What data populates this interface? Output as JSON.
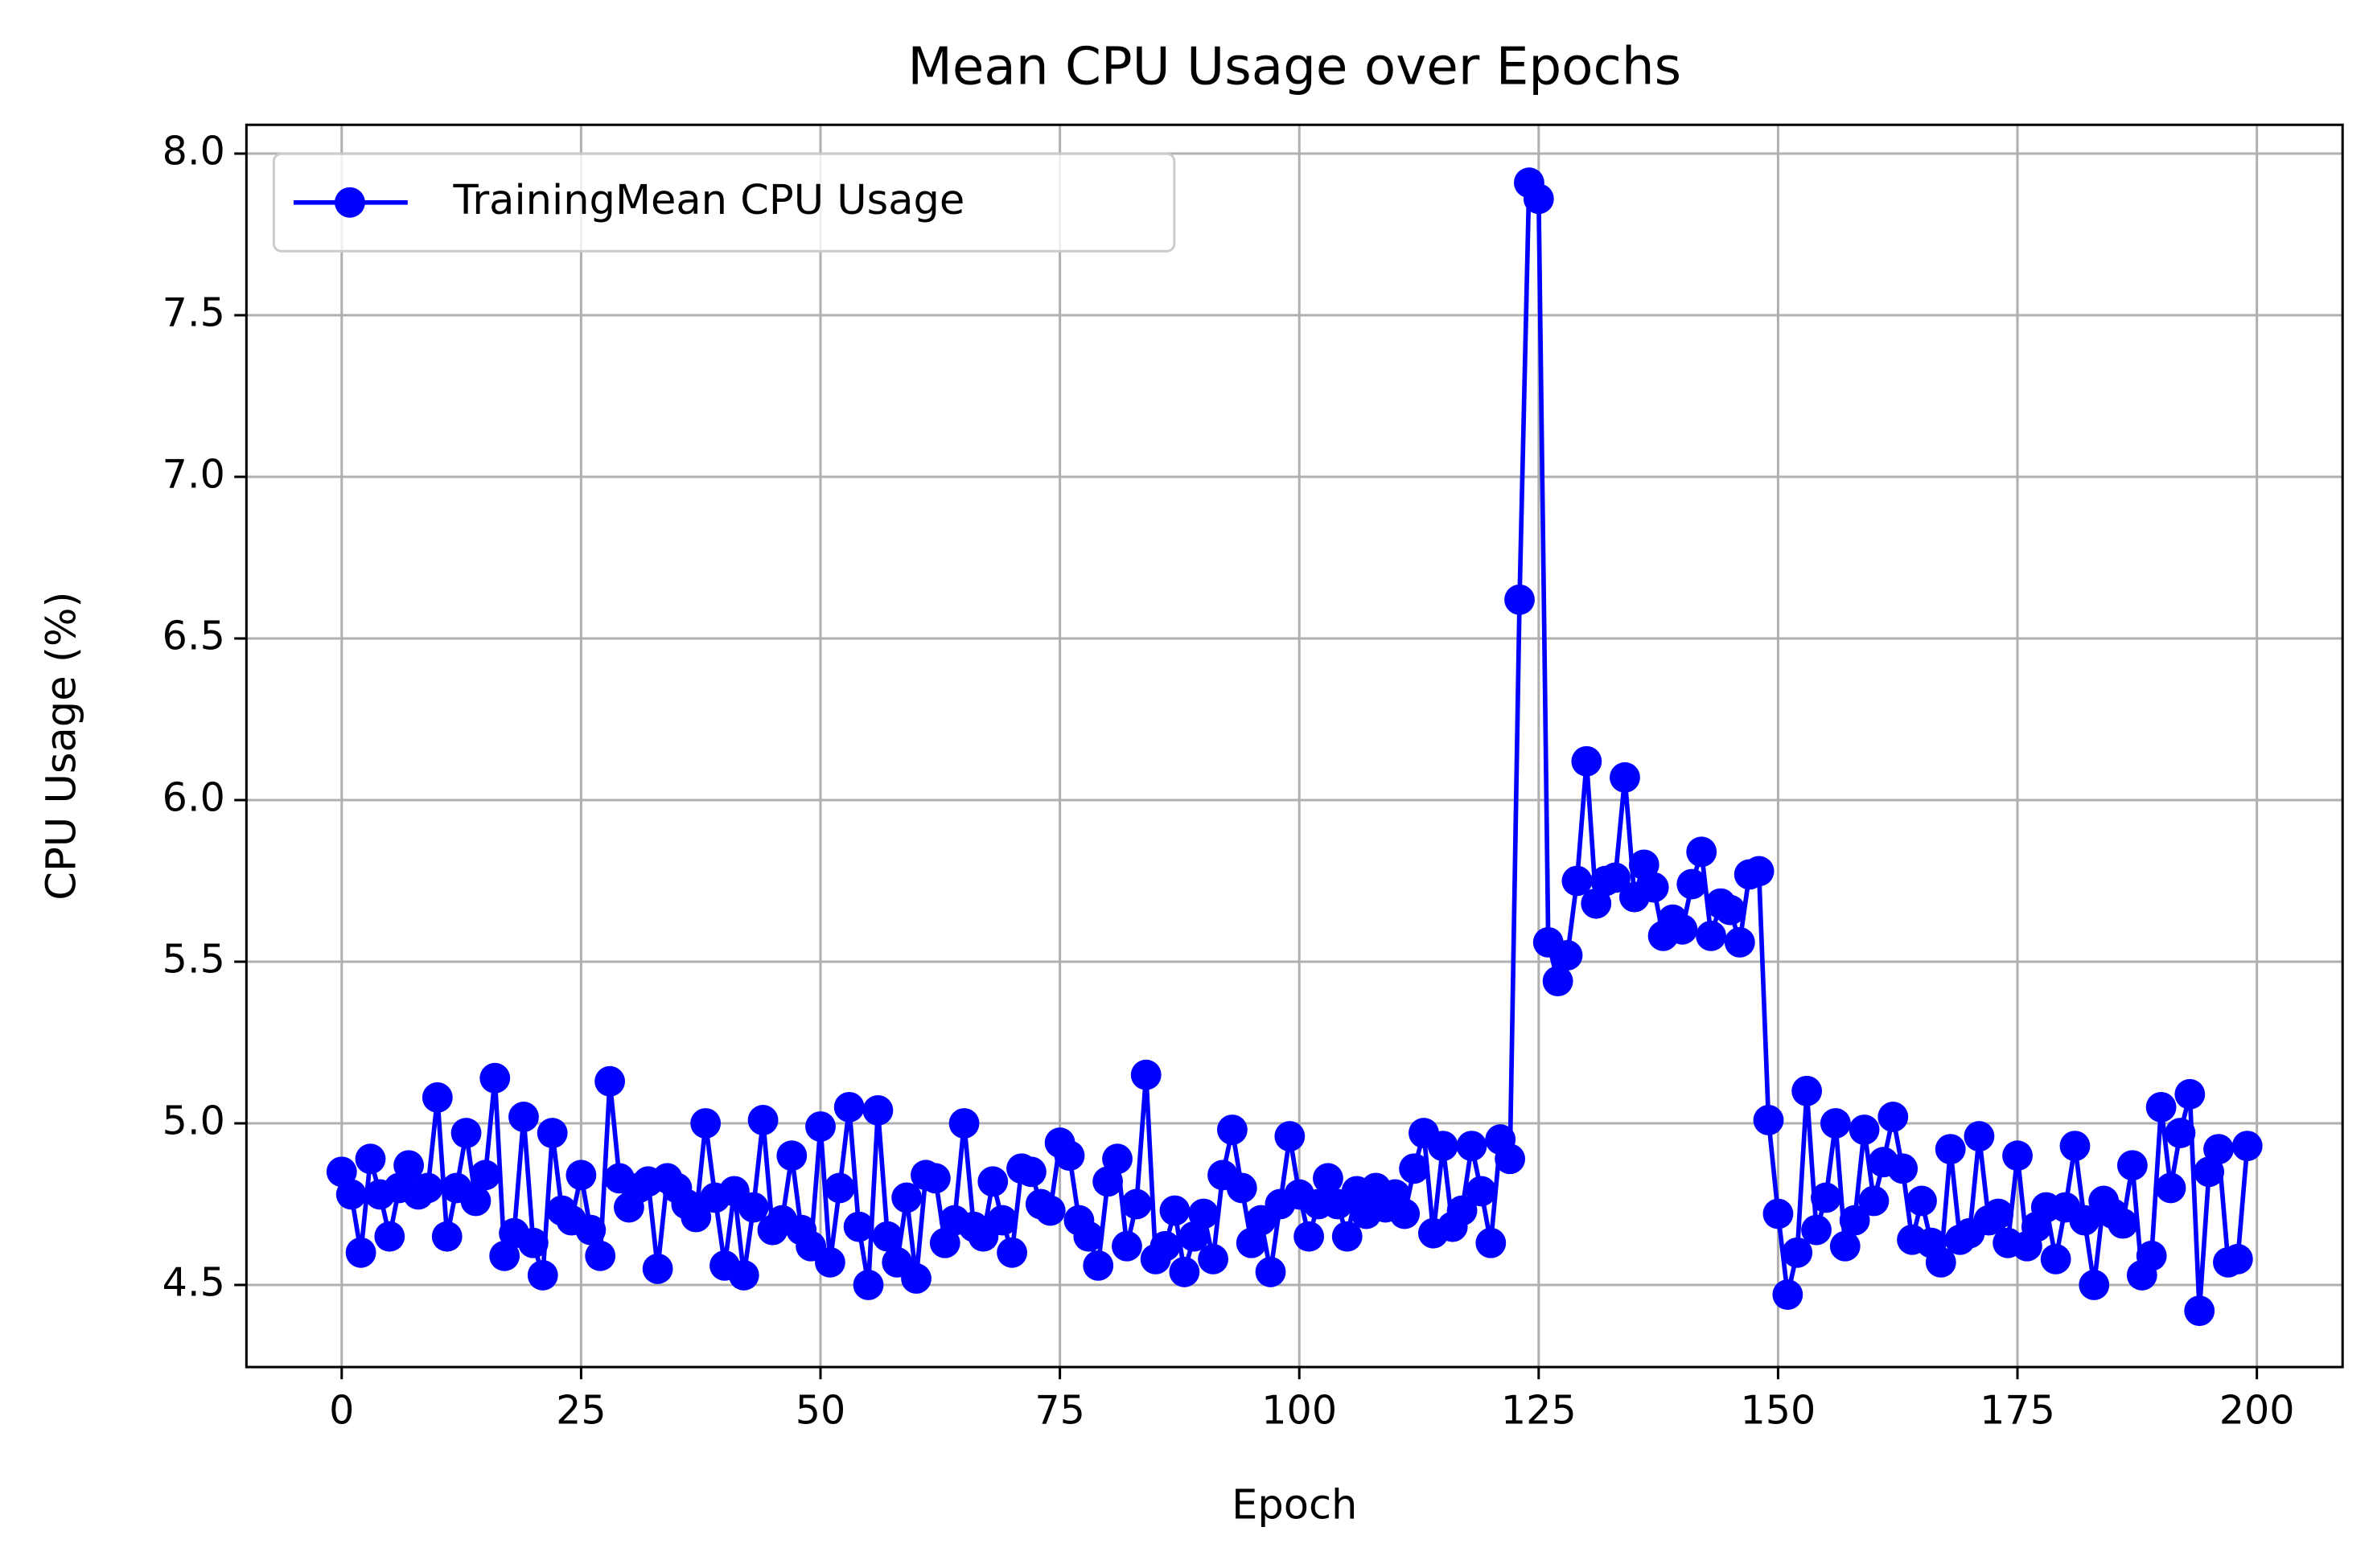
{
  "chart_data": {
    "type": "line",
    "title": "Mean CPU Usage over Epochs",
    "x_label": "Epoch",
    "y_label": "CPU Usage (%)",
    "x": [
      0,
      1,
      2,
      3,
      4,
      5,
      6,
      7,
      8,
      9,
      10,
      11,
      12,
      13,
      14,
      15,
      16,
      17,
      18,
      19,
      20,
      21,
      22,
      23,
      24,
      25,
      26,
      27,
      28,
      29,
      30,
      31,
      32,
      33,
      34,
      35,
      36,
      37,
      38,
      39,
      40,
      41,
      42,
      43,
      44,
      45,
      46,
      47,
      48,
      49,
      50,
      51,
      52,
      53,
      54,
      55,
      56,
      57,
      58,
      59,
      60,
      61,
      62,
      63,
      64,
      65,
      66,
      67,
      68,
      69,
      70,
      71,
      72,
      73,
      74,
      75,
      76,
      77,
      78,
      79,
      80,
      81,
      82,
      83,
      84,
      85,
      86,
      87,
      88,
      89,
      90,
      91,
      92,
      93,
      94,
      95,
      96,
      97,
      98,
      99,
      100,
      101,
      102,
      103,
      104,
      105,
      106,
      107,
      108,
      109,
      110,
      111,
      112,
      113,
      114,
      115,
      116,
      117,
      118,
      119,
      120,
      121,
      122,
      123,
      124,
      125,
      126,
      127,
      128,
      129,
      130,
      131,
      132,
      133,
      134,
      135,
      136,
      137,
      138,
      139,
      140,
      141,
      142,
      143,
      144,
      145,
      146,
      147,
      148,
      149,
      150,
      151,
      152,
      153,
      154,
      155,
      156,
      157,
      158,
      159,
      160,
      161,
      162,
      163,
      164,
      165,
      166,
      167,
      168,
      169,
      170,
      171,
      172,
      173,
      174,
      175,
      176,
      177,
      178,
      179,
      180,
      181,
      182,
      183,
      184,
      185,
      186,
      187,
      188,
      189,
      190,
      191,
      192,
      193,
      194,
      195,
      196,
      197,
      198,
      199
    ],
    "series": [
      {
        "name": "TrainingMean CPU Usage",
        "color": "#0000ff",
        "values": [
          4.85,
          4.78,
          4.6,
          4.89,
          4.78,
          4.65,
          4.8,
          4.87,
          4.78,
          4.8,
          5.08,
          4.65,
          4.8,
          4.97,
          4.76,
          4.84,
          5.14,
          4.59,
          4.66,
          5.02,
          4.63,
          4.53,
          4.97,
          4.73,
          4.7,
          4.84,
          4.67,
          4.59,
          5.13,
          4.83,
          4.74,
          4.8,
          4.82,
          4.55,
          4.83,
          4.8,
          4.75,
          4.71,
          5.0,
          4.77,
          4.56,
          4.79,
          4.53,
          4.74,
          5.01,
          4.67,
          4.7,
          4.9,
          4.67,
          4.62,
          4.99,
          4.57,
          4.8,
          5.05,
          4.68,
          4.5,
          5.04,
          4.65,
          4.57,
          4.77,
          4.52,
          4.84,
          4.83,
          4.63,
          4.7,
          5.0,
          4.68,
          4.65,
          4.82,
          4.7,
          4.6,
          4.86,
          4.85,
          4.75,
          4.73,
          4.94,
          4.9,
          4.7,
          4.65,
          4.56,
          4.82,
          4.89,
          4.62,
          4.75,
          5.15,
          4.58,
          4.62,
          4.73,
          4.54,
          4.65,
          4.72,
          4.58,
          4.84,
          4.98,
          4.8,
          4.63,
          4.7,
          4.54,
          4.75,
          4.96,
          4.78,
          4.65,
          4.75,
          4.83,
          4.75,
          4.65,
          4.79,
          4.72,
          4.8,
          4.74,
          4.78,
          4.72,
          4.86,
          4.97,
          4.66,
          4.93,
          4.68,
          4.73,
          4.93,
          4.79,
          4.63,
          4.95,
          4.89,
          6.62,
          7.91,
          7.86,
          5.56,
          5.44,
          5.52,
          5.75,
          6.12,
          5.68,
          5.75,
          5.76,
          6.07,
          5.7,
          5.8,
          5.73,
          5.58,
          5.63,
          5.6,
          5.74,
          5.84,
          5.58,
          5.68,
          5.66,
          5.56,
          5.77,
          5.78,
          5.01,
          4.72,
          4.47,
          4.6,
          5.1,
          4.67,
          4.77,
          5.0,
          4.62,
          4.7,
          4.98,
          4.76,
          4.88,
          5.02,
          4.86,
          4.64,
          4.76,
          4.63,
          4.57,
          4.92,
          4.64,
          4.66,
          4.96,
          4.7,
          4.72,
          4.63,
          4.9,
          4.62,
          4.68,
          4.74,
          4.58,
          4.74,
          4.93,
          4.7,
          4.5,
          4.76,
          4.72,
          4.69,
          4.87,
          4.53,
          4.59,
          5.05,
          4.8,
          4.97,
          5.09,
          4.42,
          4.85,
          4.92,
          4.57,
          4.58,
          4.93
        ]
      }
    ],
    "xlim": [
      -9.95,
      208.95
    ],
    "ylim": [
      4.246,
      8.089
    ],
    "xticks": [
      0,
      25,
      50,
      75,
      100,
      125,
      150,
      175,
      200
    ],
    "yticks": [
      4.5,
      {
        "value": 5,
        "label": "5.0"
      },
      5.5,
      {
        "value": 6,
        "label": "6.0"
      },
      6.5,
      {
        "value": 7,
        "label": "7.0"
      },
      7.5,
      {
        "value": 8,
        "label": "8.0"
      }
    ],
    "grid": true,
    "legend": "upper left"
  }
}
